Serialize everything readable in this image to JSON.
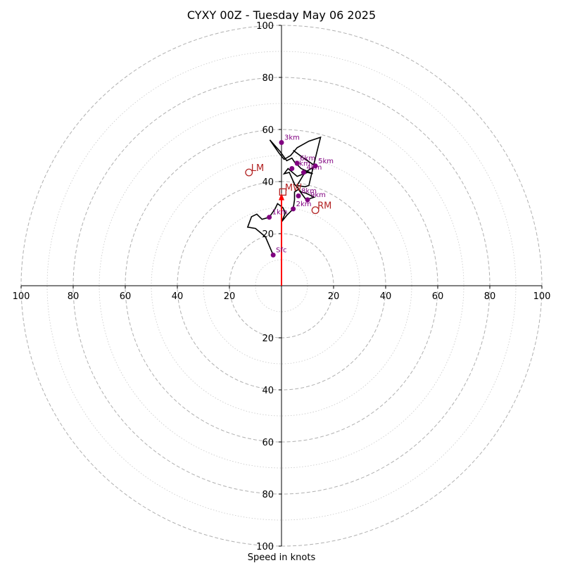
{
  "chart_data": {
    "type": "hodograph",
    "title": "CYXY 00Z - Tuesday May 06 2025",
    "xlabel": "Speed in knots",
    "max_speed": 100,
    "ring_step_major": 20,
    "ring_step_minor": 10,
    "tick_values": [
      20,
      40,
      60,
      80,
      100
    ],
    "colors": {
      "trace": "#000000",
      "height_marker": "#800080",
      "motion": "#b22222",
      "shear_vector": "#ff0000",
      "ring": "#b0b0b0",
      "axis": "#000000"
    },
    "trace": [
      [
        -3.2,
        11.8
      ],
      [
        -6.2,
        18.8
      ],
      [
        -10,
        22
      ],
      [
        -13,
        22.5
      ],
      [
        -11.5,
        26.5
      ],
      [
        -9.5,
        27.5
      ],
      [
        -7.5,
        25.5
      ],
      [
        -4.7,
        26.3
      ],
      [
        -2.5,
        29.5
      ],
      [
        -1.5,
        31.5
      ],
      [
        0.5,
        30
      ],
      [
        1.5,
        28
      ],
      [
        0,
        24.5
      ],
      [
        2,
        27
      ],
      [
        4.5,
        29.5
      ],
      [
        5,
        33
      ],
      [
        5,
        36
      ],
      [
        6.5,
        37
      ],
      [
        9.5,
        33
      ],
      [
        12.5,
        34
      ],
      [
        9.5,
        35.5
      ],
      [
        7.5,
        36
      ],
      [
        5,
        39
      ],
      [
        3,
        43.5
      ],
      [
        1,
        43
      ],
      [
        2.5,
        45
      ],
      [
        6,
        42
      ],
      [
        10,
        43.5
      ],
      [
        12,
        43
      ],
      [
        7.5,
        45
      ],
      [
        5,
        47.5
      ],
      [
        4,
        49
      ],
      [
        2,
        48
      ],
      [
        -0.5,
        51.5
      ],
      [
        -4.5,
        56
      ],
      [
        -1,
        51
      ],
      [
        1,
        48.5
      ],
      [
        3.5,
        50
      ],
      [
        6,
        53
      ],
      [
        10.5,
        55.5
      ],
      [
        15,
        57
      ],
      [
        12.5,
        47
      ],
      [
        10.5,
        38.5
      ],
      [
        9,
        38
      ],
      [
        6,
        38.5
      ],
      [
        9,
        43.5
      ],
      [
        13,
        46
      ],
      [
        8.5,
        49
      ],
      [
        4.5,
        52
      ]
    ],
    "height_markers": [
      {
        "label": "Sfc",
        "u": -3.2,
        "v": 11.8
      },
      {
        "label": "1km",
        "u": -4.7,
        "v": 26.3
      },
      {
        "label": "2km",
        "u": 4.5,
        "v": 29.5
      },
      {
        "label": "3km",
        "u": 0,
        "v": 55
      },
      {
        "label": "4km",
        "u": 8.5,
        "v": 43.5
      },
      {
        "label": "5km",
        "u": 13,
        "v": 46
      },
      {
        "label": "6km",
        "u": 6,
        "v": 47
      },
      {
        "label": "7km",
        "u": 4,
        "v": 45
      },
      {
        "label": "8km",
        "u": 6.5,
        "v": 34.5
      },
      {
        "label": "9km",
        "u": 10,
        "v": 33
      }
    ],
    "storm_motion": [
      {
        "label": "LM",
        "u": -12.5,
        "v": 43.5,
        "shape": "circle"
      },
      {
        "label": "MW",
        "u": 0.5,
        "v": 36,
        "shape": "square"
      },
      {
        "label": "RM",
        "u": 13,
        "v": 29,
        "shape": "circle"
      }
    ],
    "shear_vector": {
      "from": [
        0,
        0
      ],
      "to": [
        0,
        35
      ]
    }
  }
}
